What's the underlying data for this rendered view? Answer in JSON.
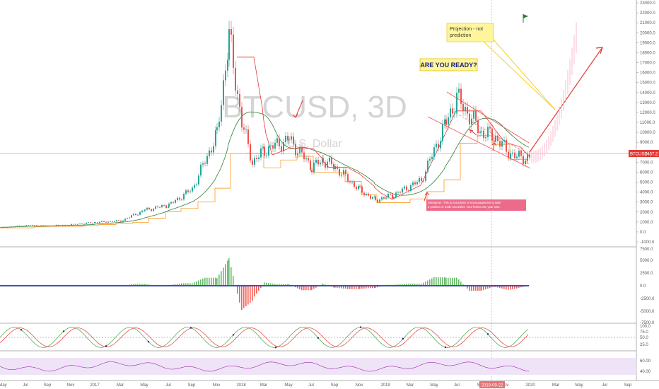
{
  "chart_data": {
    "type": "candlestick",
    "watermark": {
      "symbol": "BTCUSD, 3D",
      "currency": "U.S. Dollar"
    },
    "price_axis": {
      "ylim": [
        -1000,
        23000
      ],
      "ticks": [
        "23000.0",
        "22000.0",
        "21000.0",
        "20000.0",
        "19000.0",
        "18000.0",
        "17000.0",
        "16000.0",
        "15000.0",
        "14000.0",
        "13000.0",
        "12000.0",
        "11000.0",
        "10000.0",
        "9000.0",
        "8000.0",
        "7000.0",
        "6000.0",
        "5000.0",
        "4000.0",
        "3000.0",
        "2000.0",
        "1000.0",
        "0.0",
        "-1000.0"
      ],
      "tick_values": [
        23000,
        22000,
        21000,
        20000,
        19000,
        18000,
        17000,
        16000,
        15000,
        14000,
        13000,
        12000,
        11000,
        10000,
        9000,
        8000,
        7000,
        6000,
        5000,
        4000,
        3000,
        2000,
        1000,
        0,
        -1000
      ]
    },
    "current_price": {
      "label": "BTCUSD",
      "value": "7457.2",
      "color": "#e53935"
    },
    "time_axis": {
      "labels": [
        "May",
        "Jul",
        "Sep",
        "Nov",
        "2017",
        "Mar",
        "May",
        "Jul",
        "Sep",
        "Nov",
        "2018",
        "Mar",
        "May",
        "Jul",
        "Sep",
        "Nov",
        "2019",
        "Mar",
        "May",
        "Jul",
        "Sep",
        "Nov",
        "2020",
        "Mar",
        "May",
        "Jul",
        "Sep"
      ],
      "highlight_date": "2019-09-22"
    },
    "price_series": [
      {
        "d": "2016-05",
        "c": 450
      },
      {
        "d": "2016-07",
        "c": 650
      },
      {
        "d": "2016-09",
        "c": 610
      },
      {
        "d": "2016-11",
        "c": 730
      },
      {
        "d": "2017-01",
        "c": 960
      },
      {
        "d": "2017-03",
        "c": 1100
      },
      {
        "d": "2017-05",
        "c": 2200
      },
      {
        "d": "2017-07",
        "c": 2700
      },
      {
        "d": "2017-09",
        "c": 4300
      },
      {
        "d": "2017-11",
        "c": 9800
      },
      {
        "d": "2017-12",
        "c": 19500
      },
      {
        "d": "2018-01",
        "c": 11000
      },
      {
        "d": "2018-02",
        "c": 7000
      },
      {
        "d": "2018-03",
        "c": 8200
      },
      {
        "d": "2018-05",
        "c": 9300
      },
      {
        "d": "2018-07",
        "c": 6500
      },
      {
        "d": "2018-08",
        "c": 7200
      },
      {
        "d": "2018-09",
        "c": 6500
      },
      {
        "d": "2018-11",
        "c": 4200
      },
      {
        "d": "2018-12",
        "c": 3200
      },
      {
        "d": "2019-02",
        "c": 3700
      },
      {
        "d": "2019-04",
        "c": 5200
      },
      {
        "d": "2019-06",
        "c": 11000
      },
      {
        "d": "2019-06b",
        "c": 13500
      },
      {
        "d": "2019-08",
        "c": 10000
      },
      {
        "d": "2019-09",
        "c": 9500
      },
      {
        "d": "2019-10",
        "c": 8200
      },
      {
        "d": "2019-11",
        "c": 7500
      },
      {
        "d": "2019-12",
        "c": 7457
      }
    ],
    "projection": {
      "target": 19500,
      "color": "#e53935"
    },
    "annotations": {
      "callout": "Projection - not\nprediction",
      "banner": "ARE YOU READY?",
      "disclaimer": "Disclaimer: This is not advice or encouragement to take a position or trade securities. Your losses are your own."
    },
    "macd_axis": {
      "ticks": [
        "7500.0",
        "5000.0",
        "2500.0",
        "0.0",
        "-2500.0",
        "-5000.0",
        "-7500.0"
      ]
    },
    "stoch_axis": {
      "ticks": [
        "100.0",
        "75.0",
        "50.0",
        "25.0"
      ]
    },
    "rsi_axis": {
      "ticks": [
        "60.00",
        "40.00"
      ]
    },
    "colors": {
      "up": "#26a69a",
      "down": "#ef5350",
      "bull_hist": "#4caf50",
      "bear_hist": "#f44336",
      "zero_line": "#3f51b5",
      "rsi": "#9c27b0",
      "rsi_band": "#e8d9f4"
    }
  }
}
